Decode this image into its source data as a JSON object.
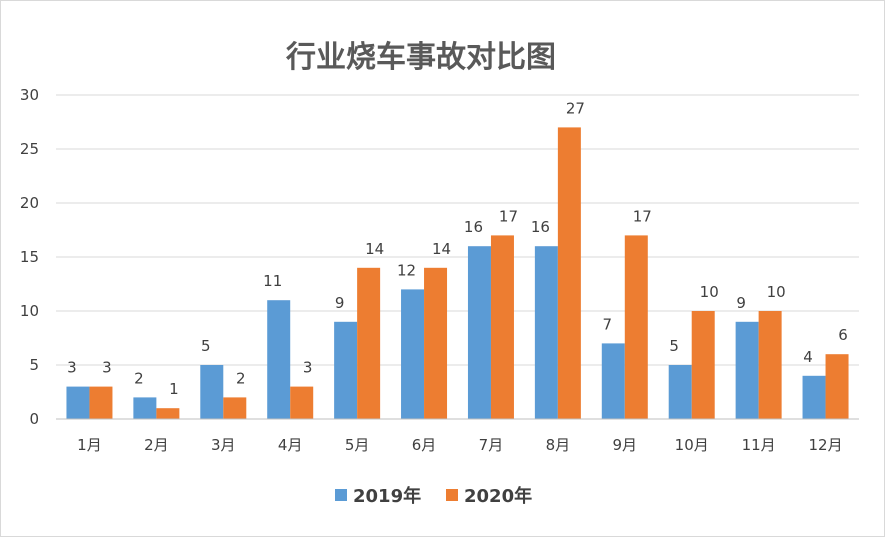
{
  "chart_data": {
    "type": "bar",
    "title": "行业烧车事故对比图",
    "xlabel": "",
    "ylabel": "",
    "categories": [
      "1月",
      "2月",
      "3月",
      "4月",
      "5月",
      "6月",
      "7月",
      "8月",
      "9月",
      "10月",
      "11月",
      "12月"
    ],
    "series": [
      {
        "name": "2019年",
        "color": "#5b9bd5",
        "values": [
          3,
          2,
          5,
          11,
          9,
          12,
          16,
          16,
          7,
          5,
          9,
          4
        ]
      },
      {
        "name": "2020年",
        "color": "#ed7d31",
        "values": [
          3,
          1,
          2,
          3,
          14,
          14,
          17,
          27,
          17,
          10,
          10,
          6
        ]
      }
    ],
    "ylim": [
      0,
      30
    ],
    "yticks": [
      0,
      5,
      10,
      15,
      20,
      25,
      30
    ],
    "grid": true,
    "legend": "bottom",
    "data_labels": true
  }
}
